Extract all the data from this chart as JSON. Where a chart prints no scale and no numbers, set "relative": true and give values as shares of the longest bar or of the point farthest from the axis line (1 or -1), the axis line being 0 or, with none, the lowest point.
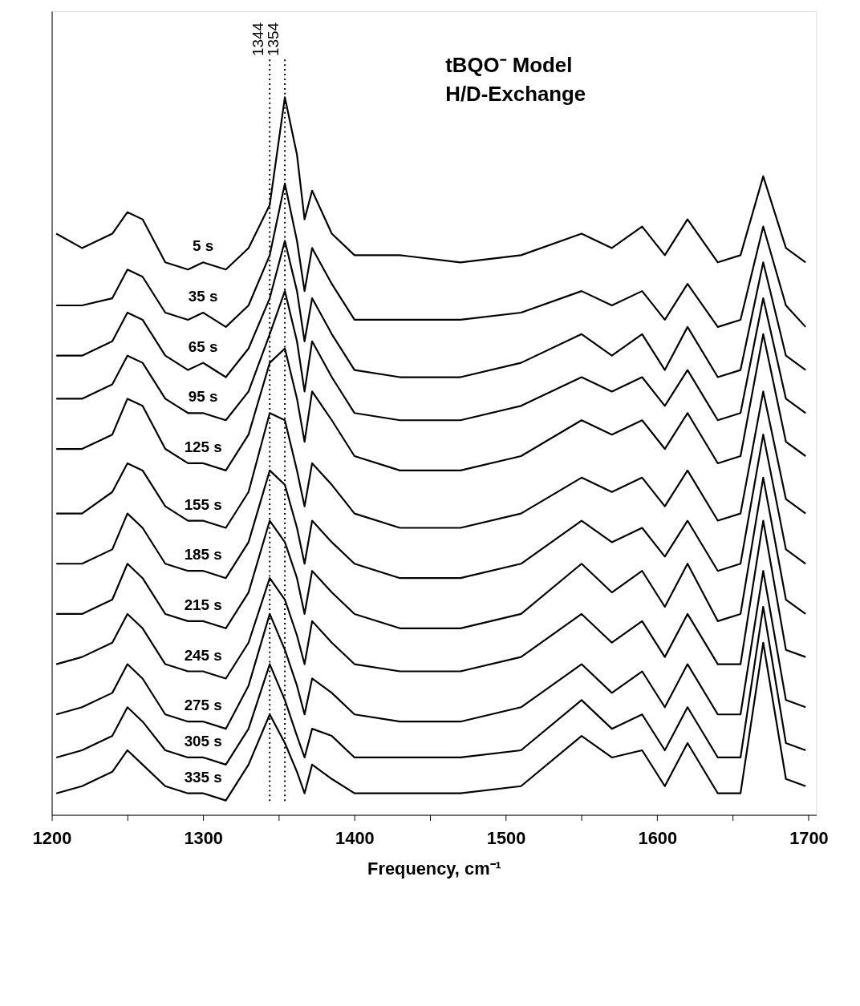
{
  "chart_data": {
    "type": "line",
    "relative": true,
    "xlabel": "Frequency, cm⁻¹",
    "annotations": [
      "tBQO⁻ Model",
      "H/D-Exchange"
    ],
    "xlim": [
      1200,
      1705
    ],
    "xticks": [
      1200,
      {
        "value": 1250,
        "label": null
      },
      1300,
      {
        "value": 1350,
        "label": null
      },
      1400,
      {
        "value": 1450,
        "label": null
      },
      1500,
      {
        "value": 1550,
        "label": null
      },
      1600,
      {
        "value": 1650,
        "label": null
      },
      1700
    ],
    "tick_labels": "x",
    "grid": false,
    "legend": false,
    "line_style": "solid",
    "marker": "none",
    "x": [
      1203,
      1220,
      1240,
      1250,
      1260,
      1275,
      1290,
      1300,
      1315,
      1330,
      1344,
      1354,
      1362,
      1367,
      1372,
      1385,
      1400,
      1430,
      1470,
      1510,
      1550,
      1570,
      1590,
      1605,
      1620,
      1640,
      1655,
      1670,
      1685,
      1698
    ],
    "ref_lines": [
      {
        "axis": "x",
        "value": 1344,
        "label": "1344",
        "line_style": "dotted"
      },
      {
        "axis": "x",
        "value": 1354,
        "label": "1354",
        "line_style": "dotted"
      }
    ],
    "series": [
      {
        "name": "5 s",
        "color": "#000000",
        "values": [
          0.81,
          0.79,
          0.81,
          0.84,
          0.83,
          0.77,
          0.76,
          0.77,
          0.76,
          0.79,
          0.85,
          1.0,
          0.92,
          0.83,
          0.87,
          0.81,
          0.78,
          0.78,
          0.77,
          0.78,
          0.81,
          0.79,
          0.82,
          0.78,
          0.83,
          0.77,
          0.78,
          0.89,
          0.79,
          0.77
        ]
      },
      {
        "name": "35 s",
        "color": "#000000",
        "values": [
          0.71,
          0.71,
          0.72,
          0.76,
          0.75,
          0.7,
          0.69,
          0.7,
          0.68,
          0.71,
          0.78,
          0.88,
          0.8,
          0.73,
          0.79,
          0.74,
          0.69,
          0.69,
          0.69,
          0.7,
          0.73,
          0.71,
          0.73,
          0.69,
          0.74,
          0.68,
          0.69,
          0.82,
          0.71,
          0.68
        ]
      },
      {
        "name": "65 s",
        "color": "#000000",
        "values": [
          0.64,
          0.64,
          0.66,
          0.7,
          0.69,
          0.64,
          0.62,
          0.63,
          0.61,
          0.65,
          0.72,
          0.8,
          0.73,
          0.66,
          0.72,
          0.67,
          0.62,
          0.61,
          0.61,
          0.63,
          0.67,
          0.64,
          0.67,
          0.62,
          0.68,
          0.61,
          0.62,
          0.77,
          0.64,
          0.62
        ]
      },
      {
        "name": "95 s",
        "color": "#000000",
        "values": [
          0.58,
          0.58,
          0.6,
          0.64,
          0.63,
          0.58,
          0.56,
          0.56,
          0.55,
          0.59,
          0.67,
          0.73,
          0.66,
          0.59,
          0.66,
          0.61,
          0.56,
          0.55,
          0.55,
          0.57,
          0.61,
          0.59,
          0.61,
          0.57,
          0.62,
          0.55,
          0.56,
          0.72,
          0.58,
          0.56
        ]
      },
      {
        "name": "125 s",
        "color": "#000000",
        "values": [
          0.51,
          0.51,
          0.53,
          0.58,
          0.57,
          0.51,
          0.49,
          0.49,
          0.48,
          0.53,
          0.63,
          0.65,
          0.58,
          0.52,
          0.59,
          0.55,
          0.5,
          0.48,
          0.48,
          0.5,
          0.55,
          0.53,
          0.55,
          0.51,
          0.56,
          0.49,
          0.5,
          0.67,
          0.52,
          0.5
        ]
      },
      {
        "name": "155 s",
        "color": "#000000",
        "values": [
          0.42,
          0.42,
          0.45,
          0.49,
          0.48,
          0.43,
          0.41,
          0.41,
          0.4,
          0.45,
          0.56,
          0.55,
          0.48,
          0.43,
          0.49,
          0.46,
          0.42,
          0.4,
          0.4,
          0.42,
          0.47,
          0.45,
          0.47,
          0.43,
          0.48,
          0.41,
          0.42,
          0.59,
          0.44,
          0.42
        ]
      },
      {
        "name": "185 s",
        "color": "#000000",
        "values": [
          0.35,
          0.35,
          0.37,
          0.42,
          0.4,
          0.35,
          0.34,
          0.34,
          0.33,
          0.38,
          0.48,
          0.46,
          0.4,
          0.35,
          0.41,
          0.38,
          0.35,
          0.33,
          0.33,
          0.35,
          0.41,
          0.38,
          0.4,
          0.36,
          0.41,
          0.34,
          0.35,
          0.53,
          0.37,
          0.35
        ]
      },
      {
        "name": "215 s",
        "color": "#000000",
        "values": [
          0.28,
          0.28,
          0.3,
          0.35,
          0.33,
          0.28,
          0.27,
          0.27,
          0.26,
          0.31,
          0.41,
          0.38,
          0.33,
          0.28,
          0.34,
          0.31,
          0.28,
          0.26,
          0.26,
          0.28,
          0.35,
          0.31,
          0.34,
          0.29,
          0.35,
          0.27,
          0.28,
          0.47,
          0.3,
          0.28
        ]
      },
      {
        "name": "245 s",
        "color": "#000000",
        "values": [
          0.21,
          0.22,
          0.24,
          0.28,
          0.26,
          0.21,
          0.2,
          0.2,
          0.19,
          0.24,
          0.33,
          0.3,
          0.25,
          0.21,
          0.27,
          0.24,
          0.21,
          0.2,
          0.2,
          0.22,
          0.28,
          0.24,
          0.27,
          0.22,
          0.28,
          0.21,
          0.21,
          0.41,
          0.23,
          0.22
        ]
      },
      {
        "name": "275 s",
        "color": "#000000",
        "values": [
          0.14,
          0.15,
          0.17,
          0.21,
          0.19,
          0.14,
          0.13,
          0.13,
          0.12,
          0.18,
          0.28,
          0.23,
          0.18,
          0.14,
          0.19,
          0.17,
          0.14,
          0.13,
          0.13,
          0.15,
          0.21,
          0.17,
          0.2,
          0.15,
          0.21,
          0.14,
          0.14,
          0.34,
          0.16,
          0.15
        ]
      },
      {
        "name": "305 s",
        "color": "#000000",
        "values": [
          0.08,
          0.09,
          0.11,
          0.15,
          0.13,
          0.09,
          0.08,
          0.08,
          0.07,
          0.12,
          0.21,
          0.16,
          0.11,
          0.08,
          0.12,
          0.11,
          0.08,
          0.08,
          0.08,
          0.09,
          0.16,
          0.12,
          0.14,
          0.09,
          0.15,
          0.08,
          0.08,
          0.29,
          0.1,
          0.09
        ]
      },
      {
        "name": "335 s",
        "color": "#000000",
        "values": [
          0.03,
          0.04,
          0.06,
          0.09,
          0.07,
          0.04,
          0.03,
          0.03,
          0.02,
          0.07,
          0.14,
          0.1,
          0.06,
          0.03,
          0.07,
          0.05,
          0.03,
          0.03,
          0.03,
          0.04,
          0.11,
          0.08,
          0.09,
          0.04,
          0.1,
          0.03,
          0.03,
          0.24,
          0.05,
          0.04
        ]
      }
    ]
  }
}
